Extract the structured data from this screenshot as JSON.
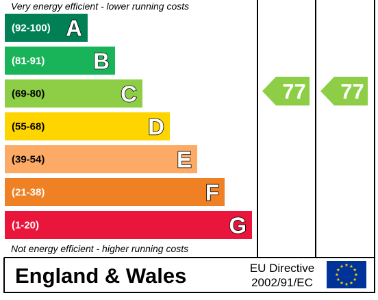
{
  "chart_data": {
    "type": "bar",
    "top_note": "Very energy efficient - lower running costs",
    "bottom_note": "Not energy efficient - higher running costs",
    "bands": [
      {
        "range": "(92-100)",
        "letter": "A",
        "color": "#008054",
        "min": 92,
        "max": 100
      },
      {
        "range": "(81-91)",
        "letter": "B",
        "color": "#19b459",
        "min": 81,
        "max": 91
      },
      {
        "range": "(69-80)",
        "letter": "C",
        "color": "#8dce46",
        "min": 69,
        "max": 80
      },
      {
        "range": "(55-68)",
        "letter": "D",
        "color": "#ffd500",
        "min": 55,
        "max": 68
      },
      {
        "range": "(39-54)",
        "letter": "E",
        "color": "#fcaa65",
        "min": 39,
        "max": 54
      },
      {
        "range": "(21-38)",
        "letter": "F",
        "color": "#ef8023",
        "min": 21,
        "max": 38
      },
      {
        "range": "(1-20)",
        "letter": "G",
        "color": "#e9153b",
        "min": 1,
        "max": 20
      }
    ],
    "ratings": [
      {
        "name": "",
        "value": 77,
        "label": "77"
      },
      {
        "name": "",
        "value": 77,
        "label": "77"
      }
    ]
  },
  "footer": {
    "country": "England & Wales",
    "directive_line1": "EU Directive",
    "directive_line2": "2002/91/EC"
  },
  "colors": {
    "eu_flag_blue": "#003399",
    "eu_star_yellow": "#ffcc00",
    "range_text_dark": "#000000",
    "range_text_light": "#ffffff"
  }
}
